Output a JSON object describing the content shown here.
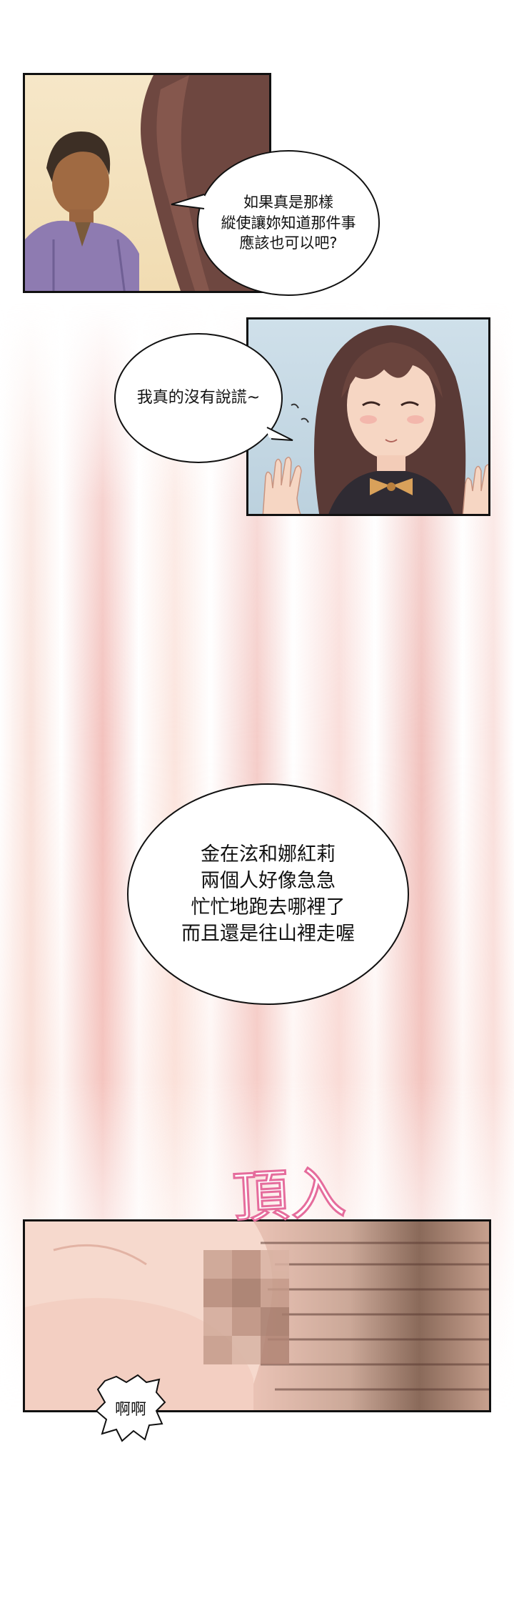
{
  "panels": [
    {
      "id": "panel1",
      "scene": "man-and-woman-at-door"
    },
    {
      "id": "panel2",
      "scene": "smiling-woman-waving-hands"
    },
    {
      "id": "panel3",
      "scene": "censored-closeup"
    }
  ],
  "dialogue": {
    "bubble1": "如果真是那樣\n縱使讓妳知道那件事\n應該也可以吧?",
    "bubble2": "我真的沒有說謊~",
    "bubble3": "金在泫和娜紅莉\n兩個人好像急急\n忙忙地跑去哪裡了\n而且還是往山裡走喔"
  },
  "sfx": {
    "top": "頂入",
    "bottom": "啊啊"
  },
  "colors": {
    "border": "#111111",
    "sfx_outline": "#e56c9c",
    "blur_tone": "#e47f72"
  }
}
